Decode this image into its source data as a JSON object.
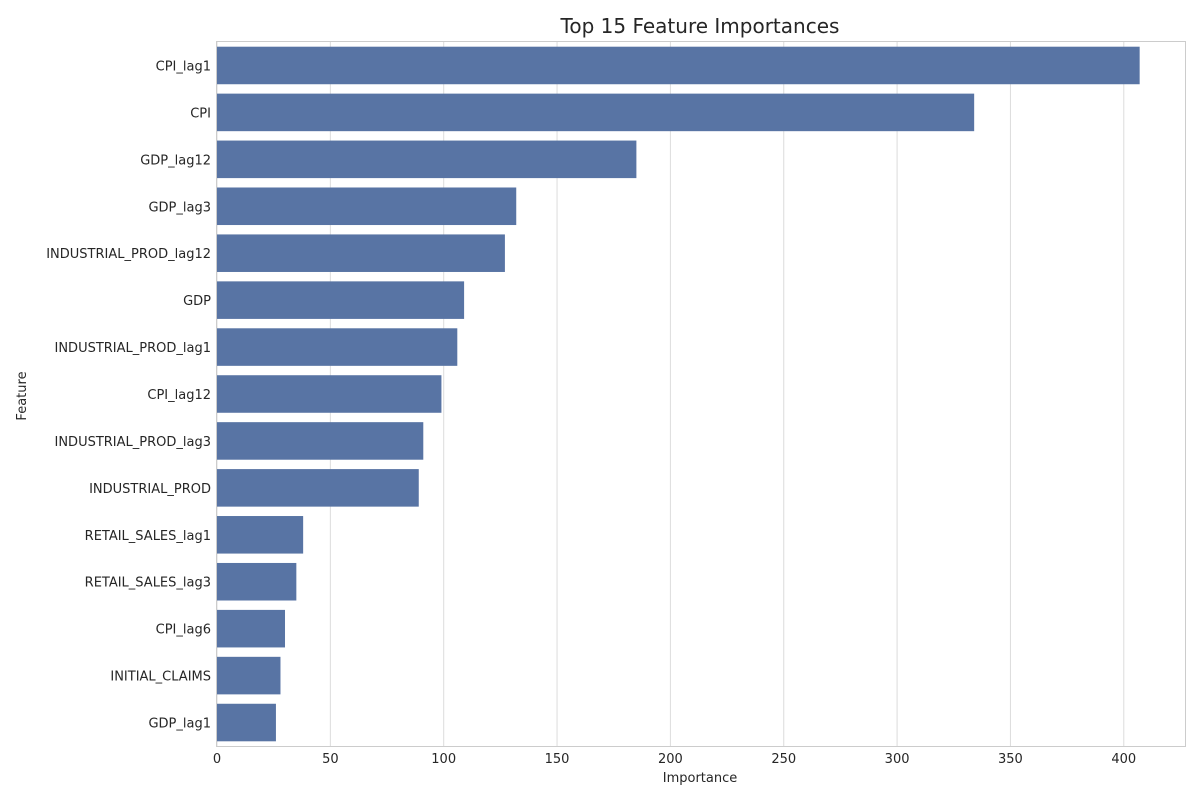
{
  "chart_data": {
    "type": "bar",
    "orientation": "horizontal",
    "title": "Top 15 Feature Importances",
    "xlabel": "Importance",
    "ylabel": "Feature",
    "categories": [
      "CPI_lag1",
      "CPI",
      "GDP_lag12",
      "GDP_lag3",
      "INDUSTRIAL_PROD_lag12",
      "GDP",
      "INDUSTRIAL_PROD_lag1",
      "CPI_lag12",
      "INDUSTRIAL_PROD_lag3",
      "INDUSTRIAL_PROD",
      "RETAIL_SALES_lag1",
      "RETAIL_SALES_lag3",
      "CPI_lag6",
      "INITIAL_CLAIMS",
      "GDP_lag1"
    ],
    "values": [
      407,
      334,
      185,
      132,
      127,
      109,
      106,
      99,
      91,
      89,
      38,
      35,
      30,
      28,
      26
    ],
    "xlim": [
      0,
      427
    ],
    "xticks": [
      0,
      50,
      100,
      150,
      200,
      250,
      300,
      350,
      400
    ],
    "grid": "vertical",
    "bar_color": "#5874a4",
    "legend": "none"
  }
}
